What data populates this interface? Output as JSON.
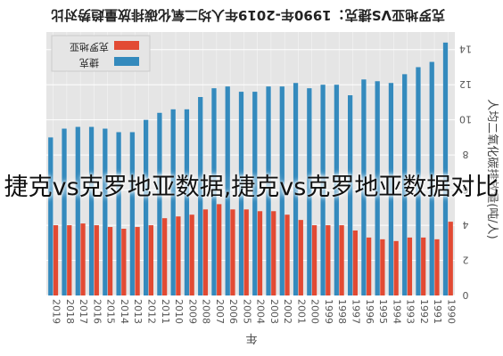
{
  "chart_data": {
    "type": "bar",
    "title": "克罗地亚VS捷克：1990年-2019年人均二氧化碳排放量趋势对比",
    "xlabel": "年",
    "ylabel": "人均二氧化碳排放量(吨/人)",
    "ylim": [
      0,
      15
    ],
    "yticks": [
      0,
      2,
      4,
      6,
      8,
      10,
      12,
      14
    ],
    "grid": true,
    "legend_position": "top-left",
    "orientation": "rotated-180",
    "categories": [
      "1990",
      "1991",
      "1992",
      "1993",
      "1994",
      "1995",
      "1996",
      "1997",
      "1998",
      "1999",
      "2000",
      "2001",
      "2002",
      "2003",
      "2004",
      "2005",
      "2006",
      "2007",
      "2008",
      "2009",
      "2010",
      "2011",
      "2012",
      "2013",
      "2014",
      "2015",
      "2016",
      "2017",
      "2018",
      "2019"
    ],
    "series": [
      {
        "name": "克罗地亚",
        "color": "#e24a33",
        "values": [
          4.2,
          3.2,
          3.3,
          3.3,
          3.1,
          3.2,
          3.3,
          3.7,
          4.0,
          4.0,
          4.0,
          4.3,
          4.6,
          4.8,
          4.8,
          4.9,
          4.9,
          5.2,
          4.9,
          4.6,
          4.5,
          4.4,
          4.0,
          3.9,
          3.8,
          3.9,
          4.0,
          4.1,
          4.0,
          4.0
        ]
      },
      {
        "name": "捷克",
        "color": "#348abd",
        "values": [
          14.4,
          13.3,
          13.0,
          12.6,
          12.1,
          12.2,
          12.3,
          11.4,
          12.0,
          12.0,
          11.8,
          12.1,
          11.9,
          11.9,
          11.6,
          11.6,
          11.9,
          11.8,
          11.3,
          10.6,
          10.6,
          10.4,
          10.0,
          9.3,
          9.3,
          9.5,
          9.6,
          9.6,
          9.5,
          9.0
        ]
      }
    ]
  },
  "watermark": "捷克vs克罗地亚数据,捷克vs克罗地亚数据对比"
}
